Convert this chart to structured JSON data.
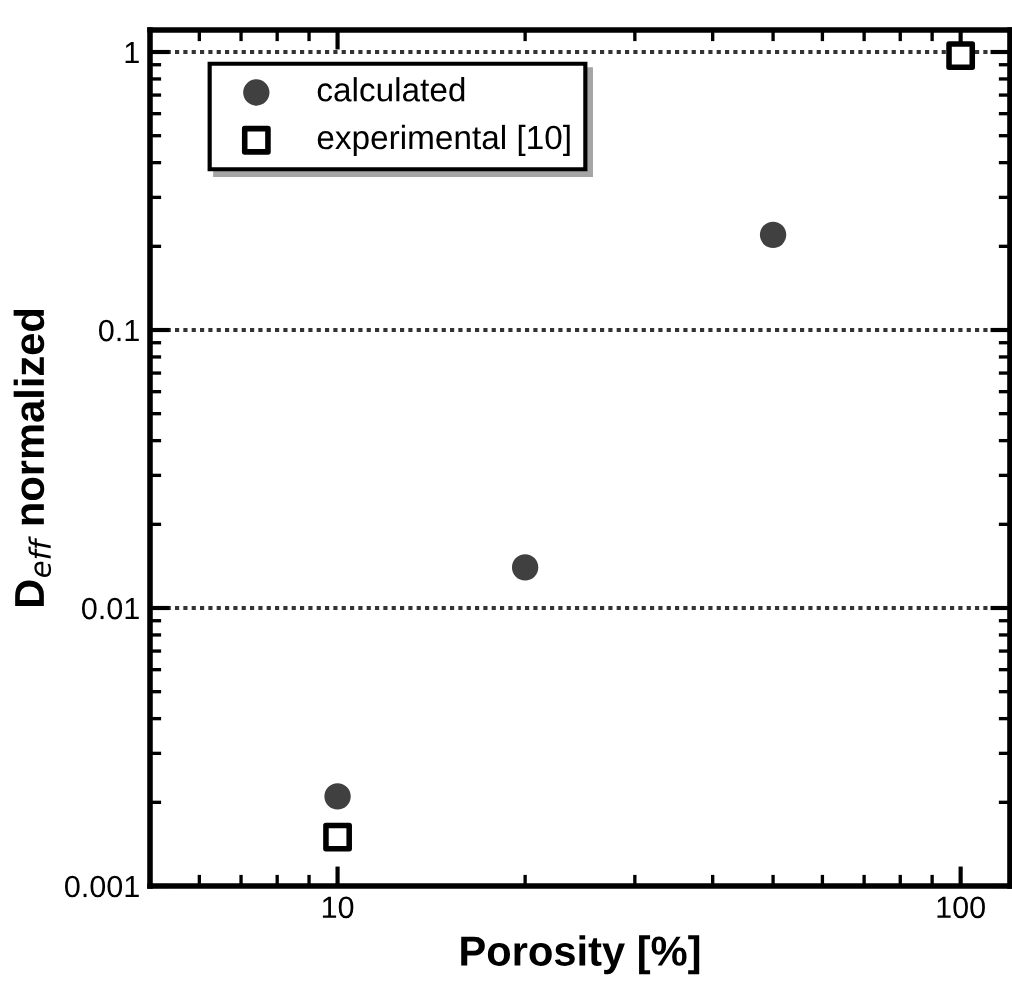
{
  "chart_data": {
    "type": "scatter",
    "xlabel": "Porosity [%]",
    "ylabel": "D$_{eff}$ normalized",
    "log": "xy",
    "xlim": [
      5,
      120
    ],
    "xticks": [
      10,
      100
    ],
    "ylim": [
      0.001,
      1.2
    ],
    "yticks": [
      0.001,
      0.01,
      0.1,
      1
    ],
    "grid": "y",
    "legend": "top left",
    "series": [
      {
        "name": "calculated",
        "color": "#404040",
        "marker": "circle",
        "x": [
          10,
          20,
          50
        ],
        "values": [
          0.0021,
          0.014,
          0.22
        ]
      },
      {
        "name": "experimental [10]",
        "color": "#000000",
        "marker": "square",
        "x": [
          10,
          100
        ],
        "values": [
          0.0015,
          0.97
        ]
      }
    ]
  }
}
